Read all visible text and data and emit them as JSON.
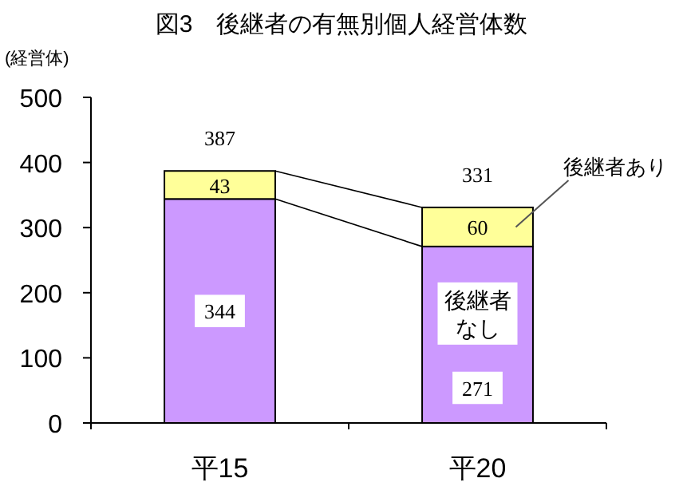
{
  "chart_data": {
    "type": "bar",
    "title": "図3　後継者の有無別個人経営体数",
    "ylabel": "(経営体)",
    "categories": [
      "平15",
      "平20"
    ],
    "series": [
      {
        "name": "後継者なし",
        "color": "#cc99ff",
        "values": [
          344,
          271
        ]
      },
      {
        "name": "後継者あり",
        "color": "#ffff99",
        "values": [
          43,
          60
        ]
      }
    ],
    "stacked": true,
    "ylim": [
      0,
      500
    ],
    "yticks": [
      0,
      100,
      200,
      300,
      400,
      500
    ],
    "data_labels": true,
    "totals": [
      "387",
      "331"
    ],
    "grid": false,
    "legend": false
  }
}
